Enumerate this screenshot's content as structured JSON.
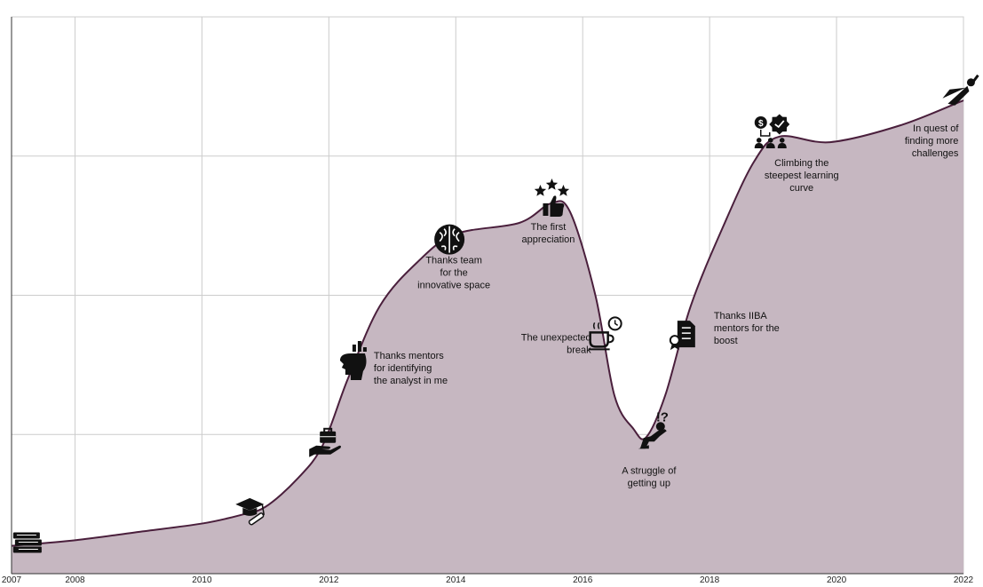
{
  "chart_data": {
    "type": "area",
    "title": "",
    "xlabel": "",
    "ylabel": "",
    "grid": true,
    "legend": "none",
    "xlim": [
      2007,
      2022
    ],
    "ylim": [
      0,
      100
    ],
    "x_ticks": [
      2007,
      2008,
      2010,
      2012,
      2014,
      2016,
      2018,
      2020,
      2022
    ],
    "x_grid": [
      2008,
      2010,
      2012,
      2014,
      2016,
      2018,
      2020,
      2022
    ],
    "y_grid": [
      25,
      50,
      75
    ],
    "colors": {
      "fill": "#c6b7c1",
      "line": "#4a1f3c",
      "grid": "#cccccc",
      "axis": "#333333"
    },
    "series": [
      {
        "points": [
          [
            2007.0,
            5
          ],
          [
            2008.0,
            6
          ],
          [
            2009.0,
            7.5
          ],
          [
            2010.0,
            9
          ],
          [
            2010.6,
            10.5
          ],
          [
            2011.0,
            12
          ],
          [
            2011.5,
            17
          ],
          [
            2011.9,
            23
          ],
          [
            2012.3,
            35
          ],
          [
            2012.8,
            48
          ],
          [
            2013.4,
            56
          ],
          [
            2014.0,
            61
          ],
          [
            2015.0,
            63
          ],
          [
            2015.5,
            66.5
          ],
          [
            2015.8,
            65
          ],
          [
            2016.2,
            50
          ],
          [
            2016.5,
            32
          ],
          [
            2016.8,
            26
          ],
          [
            2017.0,
            24.5
          ],
          [
            2017.3,
            32
          ],
          [
            2017.7,
            48
          ],
          [
            2018.2,
            62
          ],
          [
            2018.7,
            74
          ],
          [
            2019.1,
            78.5
          ],
          [
            2019.9,
            77.5
          ],
          [
            2021.0,
            80.5
          ],
          [
            2022.0,
            85
          ]
        ]
      }
    ],
    "milestones": [
      {
        "x": 2007.25,
        "y": 5.5,
        "icon": "books-icon",
        "label": []
      },
      {
        "x": 2010.95,
        "y": 11.5,
        "icon": "graduation-cap-diploma-icon",
        "label": []
      },
      {
        "x": 2011.9,
        "y": 23,
        "icon": "hand-briefcase-icon",
        "label": []
      },
      {
        "x": 2012.4,
        "y": 37,
        "icon": "head-chart-icon",
        "label": [
          "Thanks mentors",
          "for identifying",
          "the analyst in me"
        ]
      },
      {
        "x": 2013.9,
        "y": 60.5,
        "icon": "brain-icon",
        "label": [
          "Thanks team",
          "for the",
          "innovative space"
        ]
      },
      {
        "x": 2015.5,
        "y": 66.5,
        "icon": "thumbs-up-stars-icon",
        "label": [
          "The first",
          "appreciation"
        ]
      },
      {
        "x": 2016.3,
        "y": 43,
        "icon": "coffee-clock-icon",
        "label": [
          "The unexpected",
          "break"
        ]
      },
      {
        "x": 2017.1,
        "y": 25,
        "icon": "kneeling-person-icon",
        "label": [
          "A struggle of",
          "getting up"
        ]
      },
      {
        "x": 2017.8,
        "y": 44,
        "icon": "certificate-icon",
        "label": [
          "Thanks IIBA",
          "mentors for the",
          "boost"
        ]
      },
      {
        "x": 2019.1,
        "y": 78,
        "icon": "money-gear-team-icon",
        "label": [
          "Climbing the",
          "steepest learning",
          "curve"
        ]
      },
      {
        "x": 2021.95,
        "y": 86,
        "icon": "superhero-icon",
        "label": [
          "In quest of",
          "finding more",
          "challenges"
        ]
      }
    ]
  }
}
